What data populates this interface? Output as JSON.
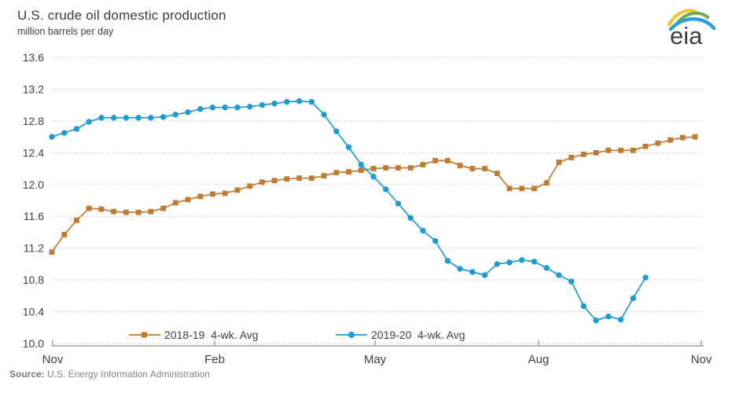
{
  "header": {
    "title": "U.S. crude oil domestic production",
    "subtitle": "million barrels per day"
  },
  "logo": {
    "text": "eia"
  },
  "source": {
    "label": "Source:",
    "text": " U.S. Energy Information Administration"
  },
  "legend": {
    "items": [
      {
        "label": "2018-19  4-wk. Avg",
        "color": "#bf7b30",
        "marker": "square"
      },
      {
        "label": "2019-20  4-wk. Avg",
        "color": "#1f9bd4",
        "marker": "circle"
      }
    ]
  },
  "colors": {
    "series_2018_19": "#bf7b30",
    "series_2019_20": "#1f9bd4",
    "grid": "#c6c6c6",
    "axis": "#8c8c8c",
    "tick_text": "#404040",
    "title_text": "#3b3b3b",
    "source_text": "#848484",
    "logo_yellow": "#f0c62f",
    "logo_green": "#6fa84f",
    "logo_blue": "#2d9fd9",
    "logo_text": "#3f3f3f"
  },
  "chart_data": {
    "type": "line",
    "title": "U.S. crude oil domestic production",
    "ylabel": "million barrels per day",
    "xlabel": "",
    "ylim": [
      10.0,
      13.6
    ],
    "yticks": [
      13.6,
      13.2,
      12.8,
      12.4,
      12.0,
      11.6,
      11.2,
      10.8,
      10.4,
      10.0
    ],
    "xticks": [
      "Nov",
      "Feb",
      "May",
      "Aug",
      "Nov"
    ],
    "grid": "horizontal dotted",
    "legend_position": "bottom",
    "x_unit": "weeks (Nov through Nov)",
    "series": [
      {
        "name": "2018-19  4-wk. Avg",
        "color": "#bf7b30",
        "marker": "square",
        "values": [
          11.15,
          11.37,
          11.55,
          11.7,
          11.69,
          11.66,
          11.65,
          11.65,
          11.66,
          11.7,
          11.77,
          11.81,
          11.85,
          11.88,
          11.89,
          11.93,
          11.98,
          12.03,
          12.05,
          12.07,
          12.08,
          12.08,
          12.11,
          12.15,
          12.16,
          12.18,
          12.2,
          12.21,
          12.21,
          12.21,
          12.25,
          12.3,
          12.3,
          12.24,
          12.2,
          12.2,
          12.14,
          11.95,
          11.95,
          11.95,
          12.02,
          12.28,
          12.34,
          12.38,
          12.4,
          12.43,
          12.43,
          12.43,
          12.48,
          12.52,
          12.56,
          12.59,
          12.6
        ]
      },
      {
        "name": "2019-20  4-wk. Avg",
        "color": "#1f9bd4",
        "marker": "circle",
        "values": [
          12.6,
          12.65,
          12.7,
          12.79,
          12.84,
          12.84,
          12.84,
          12.84,
          12.84,
          12.85,
          12.88,
          12.91,
          12.95,
          12.97,
          12.97,
          12.97,
          12.98,
          13.0,
          13.02,
          13.04,
          13.05,
          13.04,
          12.88,
          12.67,
          12.47,
          12.25,
          12.1,
          11.94,
          11.76,
          11.58,
          11.42,
          11.29,
          11.04,
          10.94,
          10.9,
          10.86,
          11.0,
          11.02,
          11.05,
          11.03,
          10.95,
          10.86,
          10.78,
          10.47,
          10.29,
          10.34,
          10.3,
          10.57,
          10.83
        ]
      }
    ]
  }
}
